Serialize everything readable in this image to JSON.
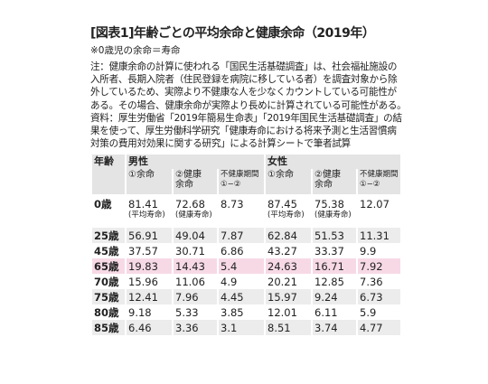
{
  "header": {
    "title": "[図表1]年齢ごとの平均余命と健康余命（2019年）",
    "subtitle": "※0歳児の余命＝寿命",
    "note": "注：健康余命の計算に使われる「国民生活基礎調査」は、社会福祉施設の入所者、長期入院者（住民登録を病院に移している者）を調査対象から除外しているため、実際より不健康な人を少なくカウントしている可能性がある。その場合、健康余命が実際より長めに計算されている可能性がある。　資料：厚生労働省「2019年簡易生命表」「2019年国民生活基礎調査」の結果を使って、厚生労働科学研究「健康寿命における将来予測と生活習慣病対策の費用対効果に関する研究」による計算シートで筆者試算"
  },
  "table": {
    "age_header": "年齢",
    "groups": [
      "男性",
      "女性"
    ],
    "columns": [
      [
        "①余命"
      ],
      [
        "②健康",
        "余命"
      ],
      [
        "不健康期間",
        "①−②"
      ],
      [
        "①余命"
      ],
      [
        "②健康",
        "余命"
      ],
      [
        "不健康期間",
        "①−②"
      ]
    ],
    "zero_row_notes": [
      "(平均寿命)",
      "(健康寿命)",
      "(平均寿命)",
      "(健康寿命)"
    ],
    "rows": [
      [
        "0歳",
        "81.41",
        "72.68",
        "8.73",
        "87.45",
        "75.38",
        "12.07"
      ],
      [
        "25歳",
        "56.91",
        "49.04",
        "7.87",
        "62.84",
        "51.53",
        "11.31"
      ],
      [
        "45歳",
        "37.57",
        "30.71",
        "6.86",
        "43.27",
        "33.37",
        "9.9"
      ],
      [
        "65歳",
        "19.83",
        "14.43",
        "5.4",
        "24.63",
        "16.71",
        "7.92"
      ],
      [
        "70歳",
        "15.96",
        "11.06",
        "4.9",
        "20.21",
        "12.85",
        "7.36"
      ],
      [
        "75歳",
        "12.41",
        "7.96",
        "4.45",
        "15.97",
        "9.24",
        "6.73"
      ],
      [
        "80歳",
        "9.18",
        "5.33",
        "3.85",
        "12.01",
        "6.11",
        "5.9"
      ],
      [
        "85歳",
        "6.46",
        "3.36",
        "3.1",
        "8.51",
        "3.74",
        "4.77"
      ]
    ]
  }
}
